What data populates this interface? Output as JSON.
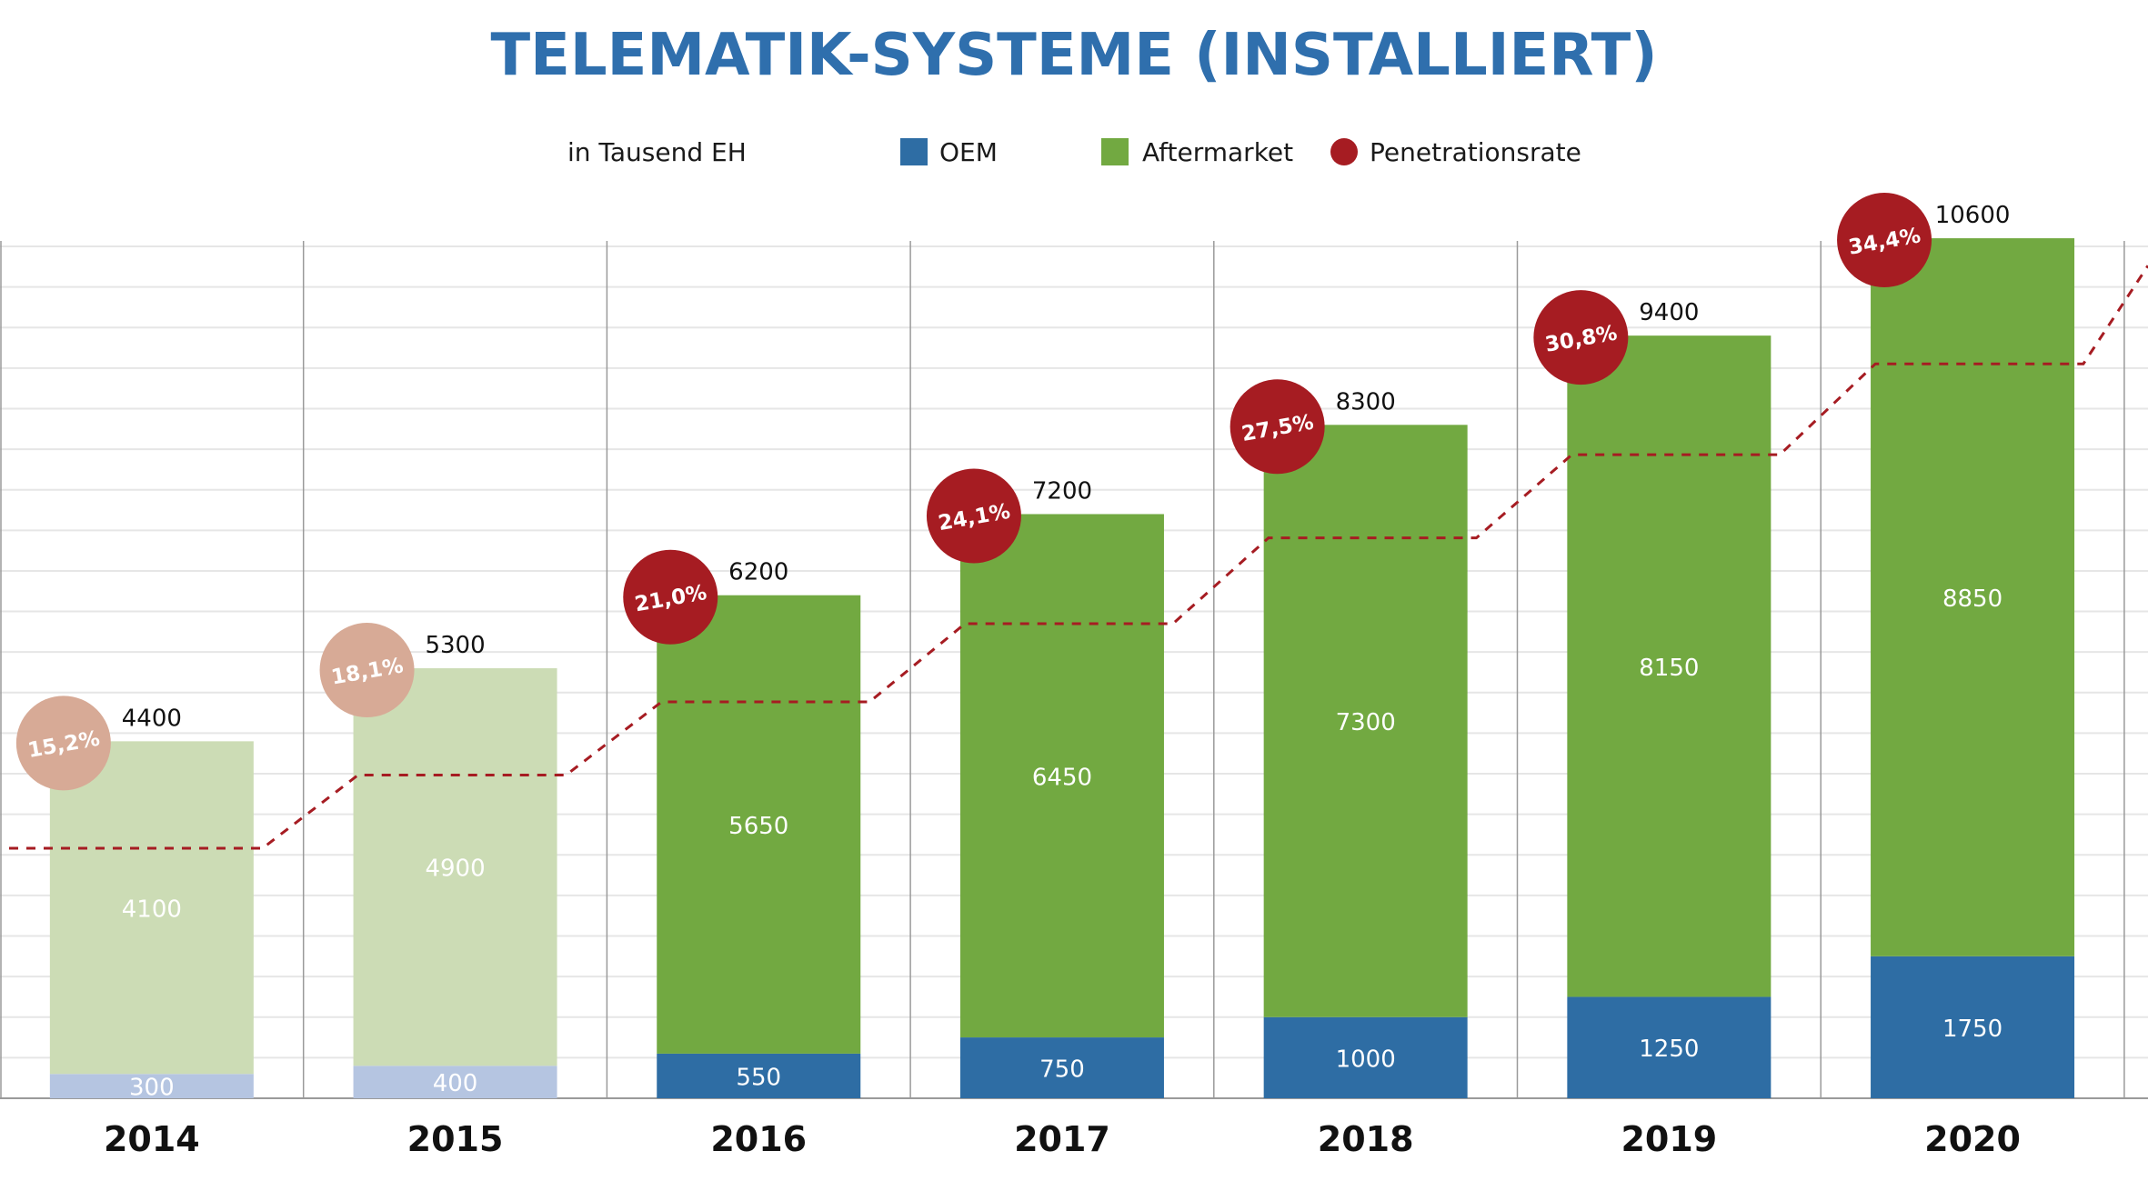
{
  "chart_data": {
    "type": "bar",
    "title": "TELEMATIK-SYSTEME (INSTALLIERT)",
    "unit_note": "in Tausend EH",
    "categories": [
      "2014",
      "2015",
      "2016",
      "2017",
      "2018",
      "2019",
      "2020"
    ],
    "series": [
      {
        "name": "OEM",
        "values": [
          300,
          400,
          550,
          750,
          1000,
          1250,
          1750
        ]
      },
      {
        "name": "Aftermarket",
        "values": [
          4100,
          4900,
          5650,
          6450,
          7300,
          8150,
          8850
        ]
      },
      {
        "name": "Penetrationsrate",
        "values": [
          15.2,
          18.1,
          21.0,
          24.1,
          27.5,
          30.8,
          34.4
        ]
      }
    ],
    "totals": [
      4400,
      5300,
      6200,
      7200,
      8300,
      9400,
      10600
    ],
    "penetration_labels": [
      "15,2%",
      "18,1%",
      "21,0%",
      "24,1%",
      "27,5%",
      "30,8%",
      "34,4%"
    ],
    "highlighted_from": "2016",
    "stacked": true,
    "ylim": [
      0,
      11000
    ],
    "grid": true,
    "legend_position": "top",
    "colors": {
      "oem": "#2e6da4",
      "aftermarket": "#72a941",
      "oem_faded": "#b5c5e1",
      "aftermarket_faded": "#ccdcb5",
      "penetration": "#a61c22",
      "penetration_faded": "#d7aa96",
      "title": "#2f6fad"
    }
  }
}
